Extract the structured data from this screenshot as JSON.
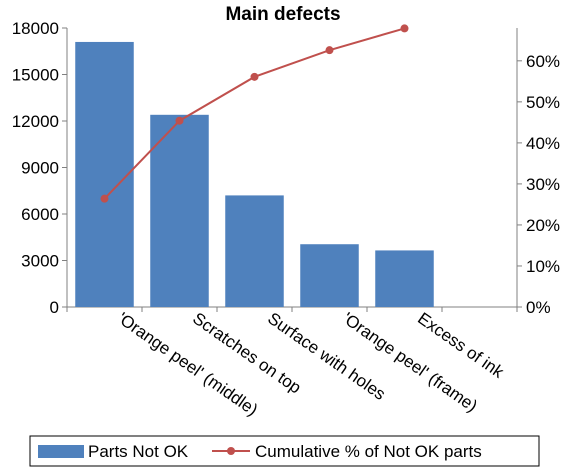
{
  "chart_data": {
    "type": "bar",
    "title": "Main defects",
    "categories": [
      "'Orange peel' (middle)",
      "Scratches on top",
      "Surface with holes",
      "'Orange peel' (frame)",
      "Excess of ink"
    ],
    "series": [
      {
        "name": "Parts Not OK",
        "type": "bar",
        "axis": "left",
        "color": "#4f81bd",
        "values": [
          17100,
          12400,
          7200,
          4050,
          3650
        ]
      },
      {
        "name": "Cumulative % of Not OK parts",
        "type": "line",
        "axis": "right",
        "color": "#c0504d",
        "values": [
          26.4,
          45.4,
          56.1,
          62.6,
          67.9
        ]
      }
    ],
    "ylim": [
      0,
      18000
    ],
    "y_ticks": [
      "0",
      "3000",
      "6000",
      "9000",
      "12000",
      "15000",
      "18000"
    ],
    "y2lim": [
      0,
      68
    ],
    "y2_ticks": [
      "0%",
      "10%",
      "20%",
      "30%",
      "40%",
      "50%",
      "60%"
    ],
    "grid": false,
    "legend_position": "bottom"
  }
}
